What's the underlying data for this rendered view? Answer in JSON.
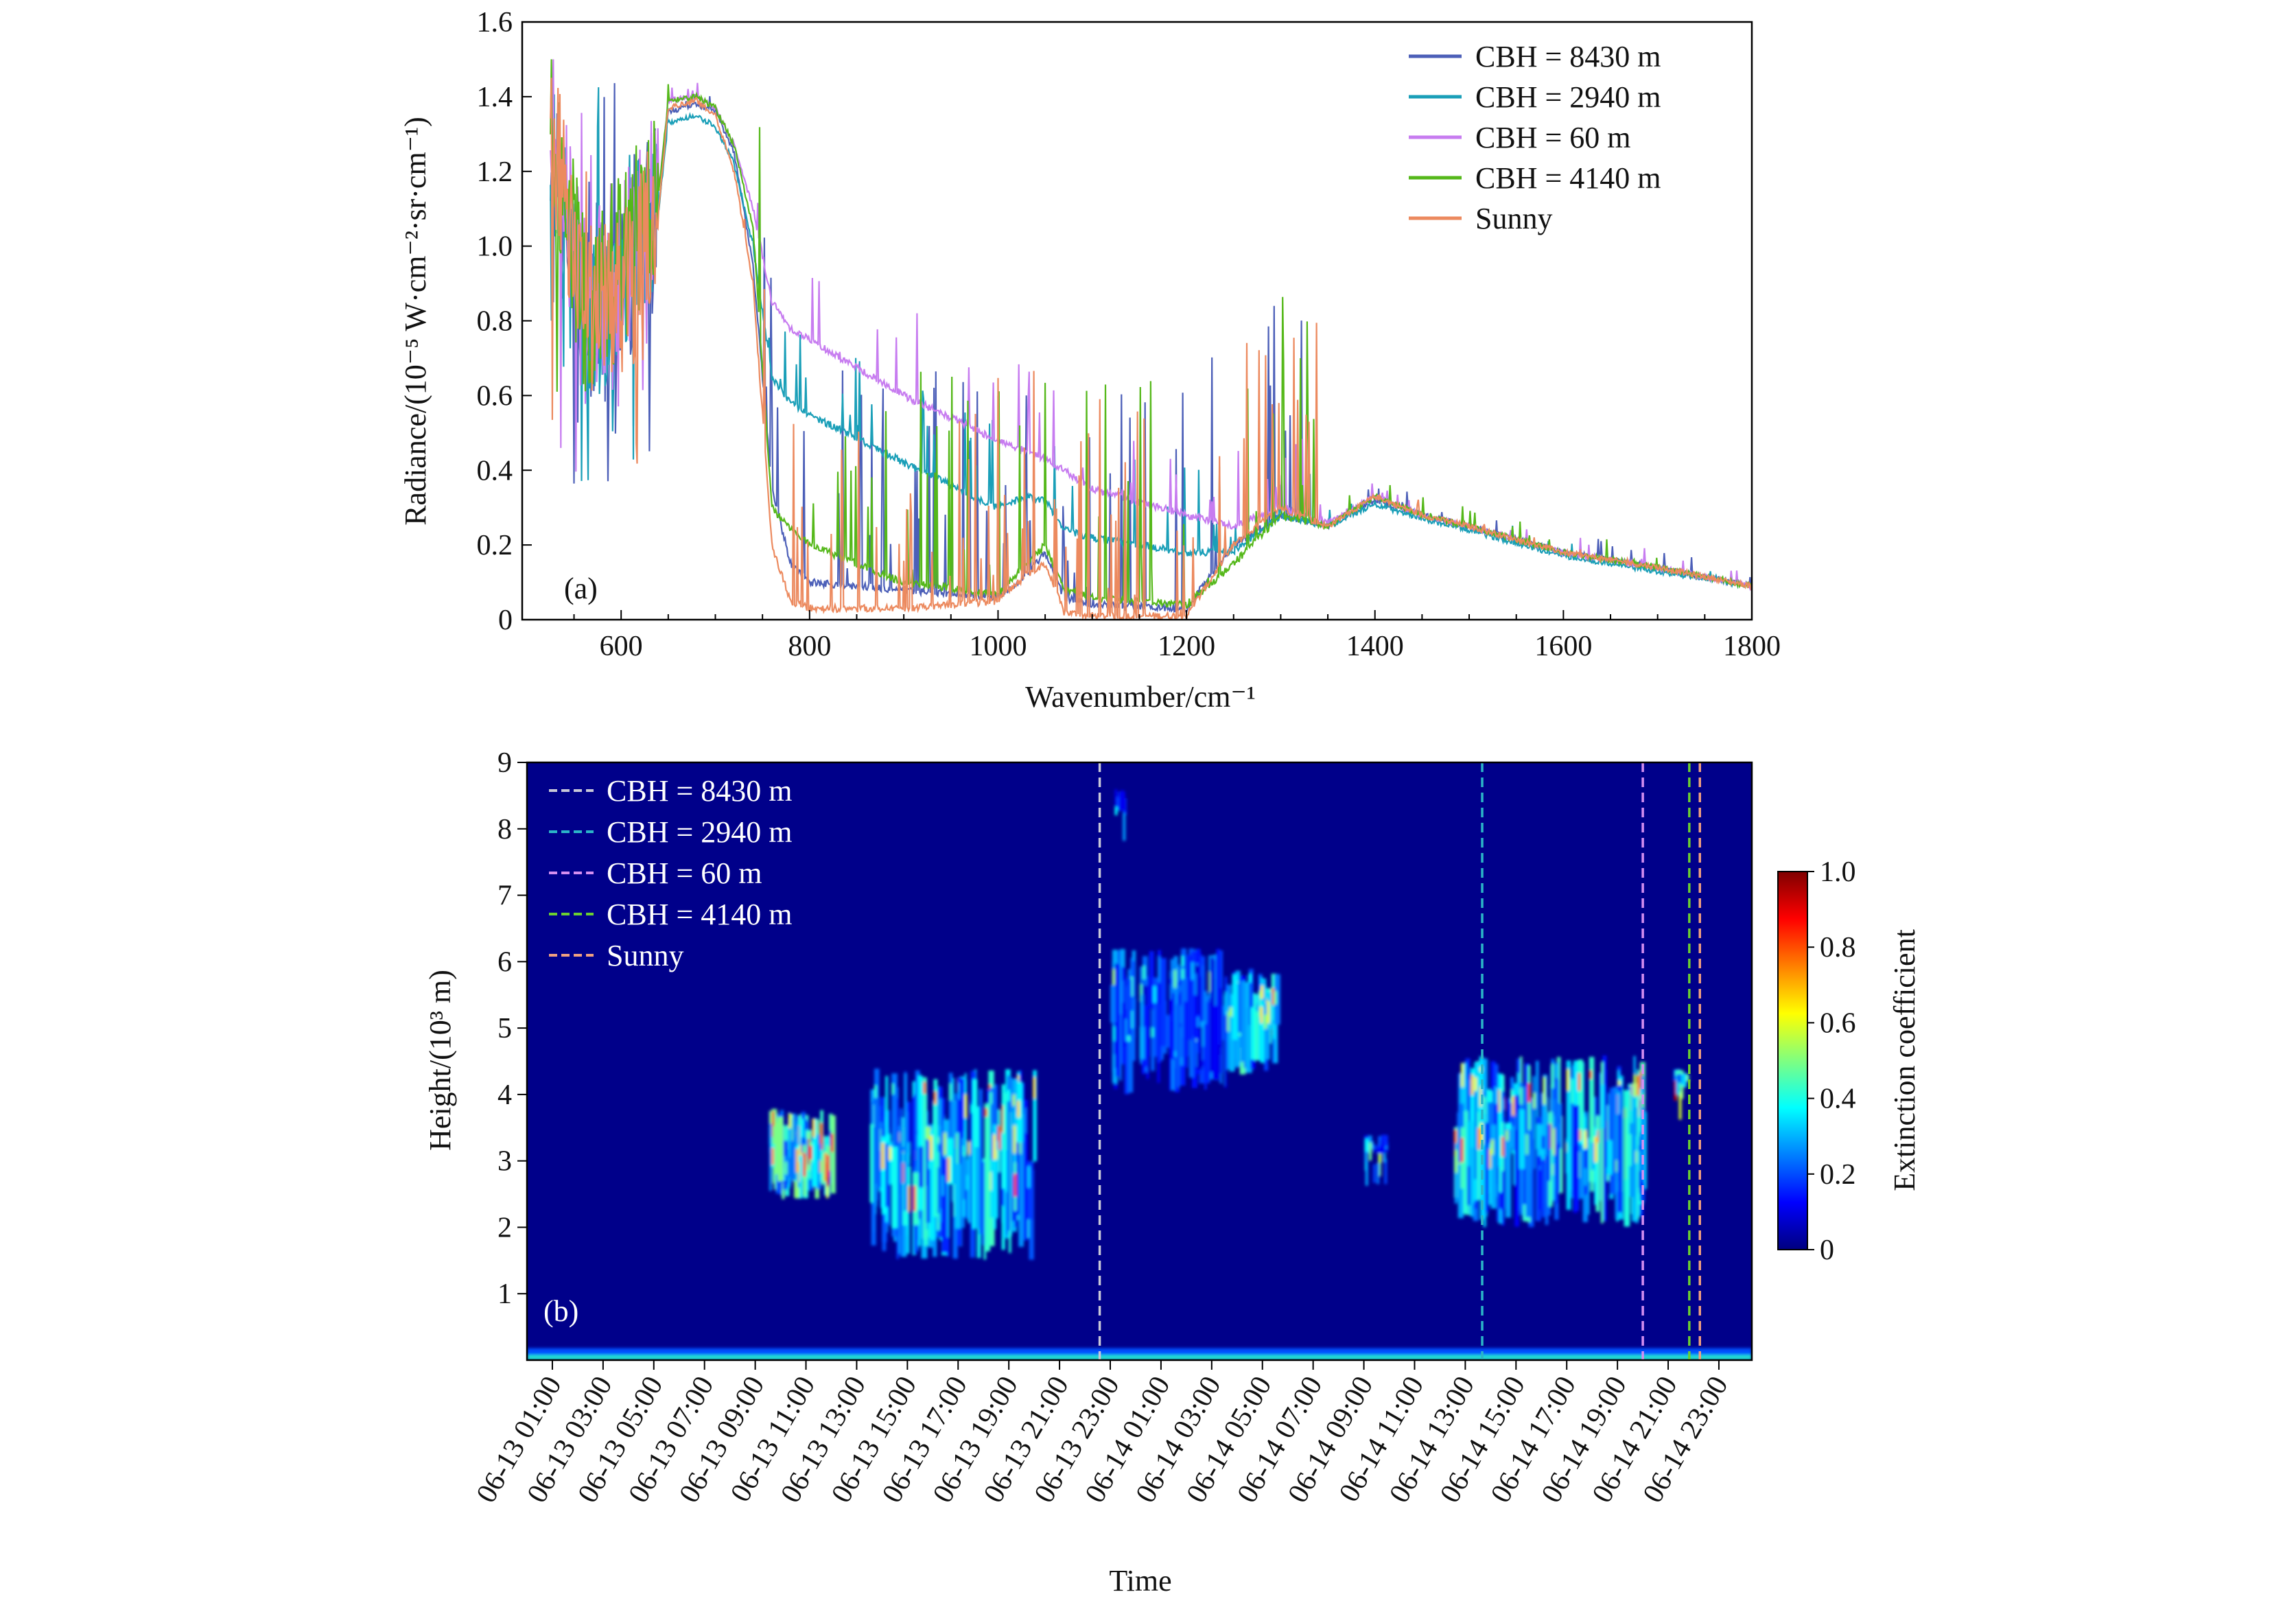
{
  "chart_data": [
    {
      "type": "line",
      "panel_label": "(a)",
      "xlabel": "Wavenumber/cm⁻¹",
      "ylabel": "Radiance/(10⁻⁵ W·cm⁻²·sr·cm⁻¹)",
      "xlim": [
        495,
        1800
      ],
      "ylim": [
        0,
        1.6
      ],
      "xticks": [
        "600",
        "800",
        "1000",
        "1200",
        "1400",
        "1600",
        "1800"
      ],
      "yticks": [
        "0",
        "0.2",
        "0.4",
        "0.6",
        "0.8",
        "1.0",
        "1.2",
        "1.4",
        "1.6"
      ],
      "legend_position": "top-right",
      "x": [
        525,
        560,
        600,
        640,
        650,
        680,
        700,
        720,
        740,
        760,
        780,
        800,
        900,
        1000,
        1030,
        1050,
        1070,
        1100,
        1200,
        1250,
        1300,
        1350,
        1400,
        1450,
        1500,
        1600,
        1700,
        1800
      ],
      "series": [
        {
          "name": "CBH = 8430 m",
          "color": "#4c5fb8",
          "values": [
            1.25,
            0.8,
            0.9,
            1.1,
            1.36,
            1.38,
            1.36,
            1.25,
            0.95,
            0.35,
            0.15,
            0.1,
            0.08,
            0.06,
            0.12,
            0.18,
            0.06,
            0.04,
            0.03,
            0.2,
            0.28,
            0.25,
            0.32,
            0.28,
            0.25,
            0.18,
            0.14,
            0.09
          ]
        },
        {
          "name": "CBH = 2940 m",
          "color": "#1a9fb8",
          "values": [
            1.25,
            0.8,
            0.9,
            1.1,
            1.33,
            1.35,
            1.32,
            1.22,
            1.0,
            0.65,
            0.58,
            0.55,
            0.42,
            0.3,
            0.33,
            0.32,
            0.24,
            0.22,
            0.18,
            0.18,
            0.28,
            0.25,
            0.31,
            0.27,
            0.24,
            0.17,
            0.13,
            0.09
          ]
        },
        {
          "name": "CBH = 60 m",
          "color": "#c77cf0",
          "values": [
            1.3,
            0.85,
            0.95,
            1.15,
            1.39,
            1.4,
            1.37,
            1.27,
            1.1,
            0.85,
            0.78,
            0.75,
            0.6,
            0.48,
            0.45,
            0.43,
            0.4,
            0.35,
            0.28,
            0.25,
            0.3,
            0.26,
            0.33,
            0.28,
            0.25,
            0.18,
            0.14,
            0.09
          ]
        },
        {
          "name": "CBH = 4140 m",
          "color": "#55b81a",
          "values": [
            1.3,
            0.85,
            0.95,
            1.15,
            1.39,
            1.4,
            1.37,
            1.27,
            1.05,
            0.3,
            0.24,
            0.2,
            0.1,
            0.07,
            0.15,
            0.2,
            0.08,
            0.06,
            0.04,
            0.15,
            0.28,
            0.25,
            0.33,
            0.28,
            0.25,
            0.18,
            0.14,
            0.09
          ]
        },
        {
          "name": "Sunny",
          "color": "#ec8a5f",
          "values": [
            1.3,
            0.8,
            0.9,
            1.1,
            1.37,
            1.39,
            1.35,
            1.2,
            0.9,
            0.2,
            0.05,
            0.03,
            0.03,
            0.05,
            0.12,
            0.15,
            0.02,
            0.01,
            0.01,
            0.2,
            0.3,
            0.25,
            0.33,
            0.28,
            0.25,
            0.18,
            0.14,
            0.09
          ]
        }
      ]
    },
    {
      "type": "heatmap",
      "panel_label": "(b)",
      "xlabel": "Time",
      "ylabel": "Height/(10³ m)",
      "ylim": [
        0,
        9
      ],
      "yticks": [
        "1",
        "2",
        "3",
        "4",
        "5",
        "6",
        "7",
        "8",
        "9"
      ],
      "xlim": [
        "06-13 00:00",
        "06-15 00:18"
      ],
      "xticks": [
        "06-13 01:00",
        "06-13 03:00",
        "06-13 05:00",
        "06-13 07:00",
        "06-13 09:00",
        "06-13 11:00",
        "06-13 13:00",
        "06-13 15:00",
        "06-13 17:00",
        "06-13 19:00",
        "06-13 21:00",
        "06-13 23:00",
        "06-14 01:00",
        "06-14 03:00",
        "06-14 05:00",
        "06-14 07:00",
        "06-14 09:00",
        "06-14 11:00",
        "06-14 13:00",
        "06-14 15:00",
        "06-14 17:00",
        "06-14 19:00",
        "06-14 21:00",
        "06-14 23:00"
      ],
      "colorbar": {
        "label": "Extinction coefficient",
        "colormap": "jet",
        "range": [
          0,
          1.0
        ],
        "ticks": [
          "0",
          "0.2",
          "0.4",
          "0.6",
          "0.8",
          "1.0"
        ]
      },
      "legend_position": "top-left",
      "markers": [
        {
          "name": "CBH = 8430 m",
          "time": "06-13 22:35",
          "color": "#c8c8d8"
        },
        {
          "name": "CBH = 2940 m",
          "time": "06-14 13:40",
          "color": "#2bb5c8"
        },
        {
          "name": "CBH = 60 m",
          "time": "06-14 20:00",
          "color": "#d58ff0"
        },
        {
          "name": "CBH = 4140 m",
          "time": "06-14 21:50",
          "color": "#6cd030"
        },
        {
          "name": "Sunny",
          "time": "06-14 22:15",
          "color": "#f0a080"
        }
      ],
      "cloud_features": [
        {
          "start": "06-13 09:30",
          "end": "06-13 12:00",
          "base_km": 2.4,
          "top_km": 3.8,
          "peak": 0.95
        },
        {
          "start": "06-13 13:30",
          "end": "06-13 20:00",
          "base_km": 1.5,
          "top_km": 4.4,
          "peak": 0.8
        },
        {
          "start": "06-13 23:00",
          "end": "06-14 03:30",
          "base_km": 4.0,
          "top_km": 6.2,
          "peak": 0.55
        },
        {
          "start": "06-14 03:30",
          "end": "06-14 05:30",
          "base_km": 4.3,
          "top_km": 5.9,
          "peak": 0.85
        },
        {
          "start": "06-14 09:00",
          "end": "06-14 09:50",
          "base_km": 3.1,
          "top_km": 3.4,
          "peak": 0.7
        },
        {
          "start": "06-14 12:30",
          "end": "06-14 20:00",
          "base_km": 2.0,
          "top_km": 4.6,
          "peak": 0.85
        },
        {
          "start": "06-14 21:10",
          "end": "06-14 21:40",
          "base_km": 4.1,
          "top_km": 4.4,
          "peak": 0.95
        },
        {
          "start": "06-13 23:10",
          "end": "06-13 23:30",
          "base_km": 8.2,
          "top_km": 8.6,
          "peak": 0.4
        }
      ]
    }
  ]
}
